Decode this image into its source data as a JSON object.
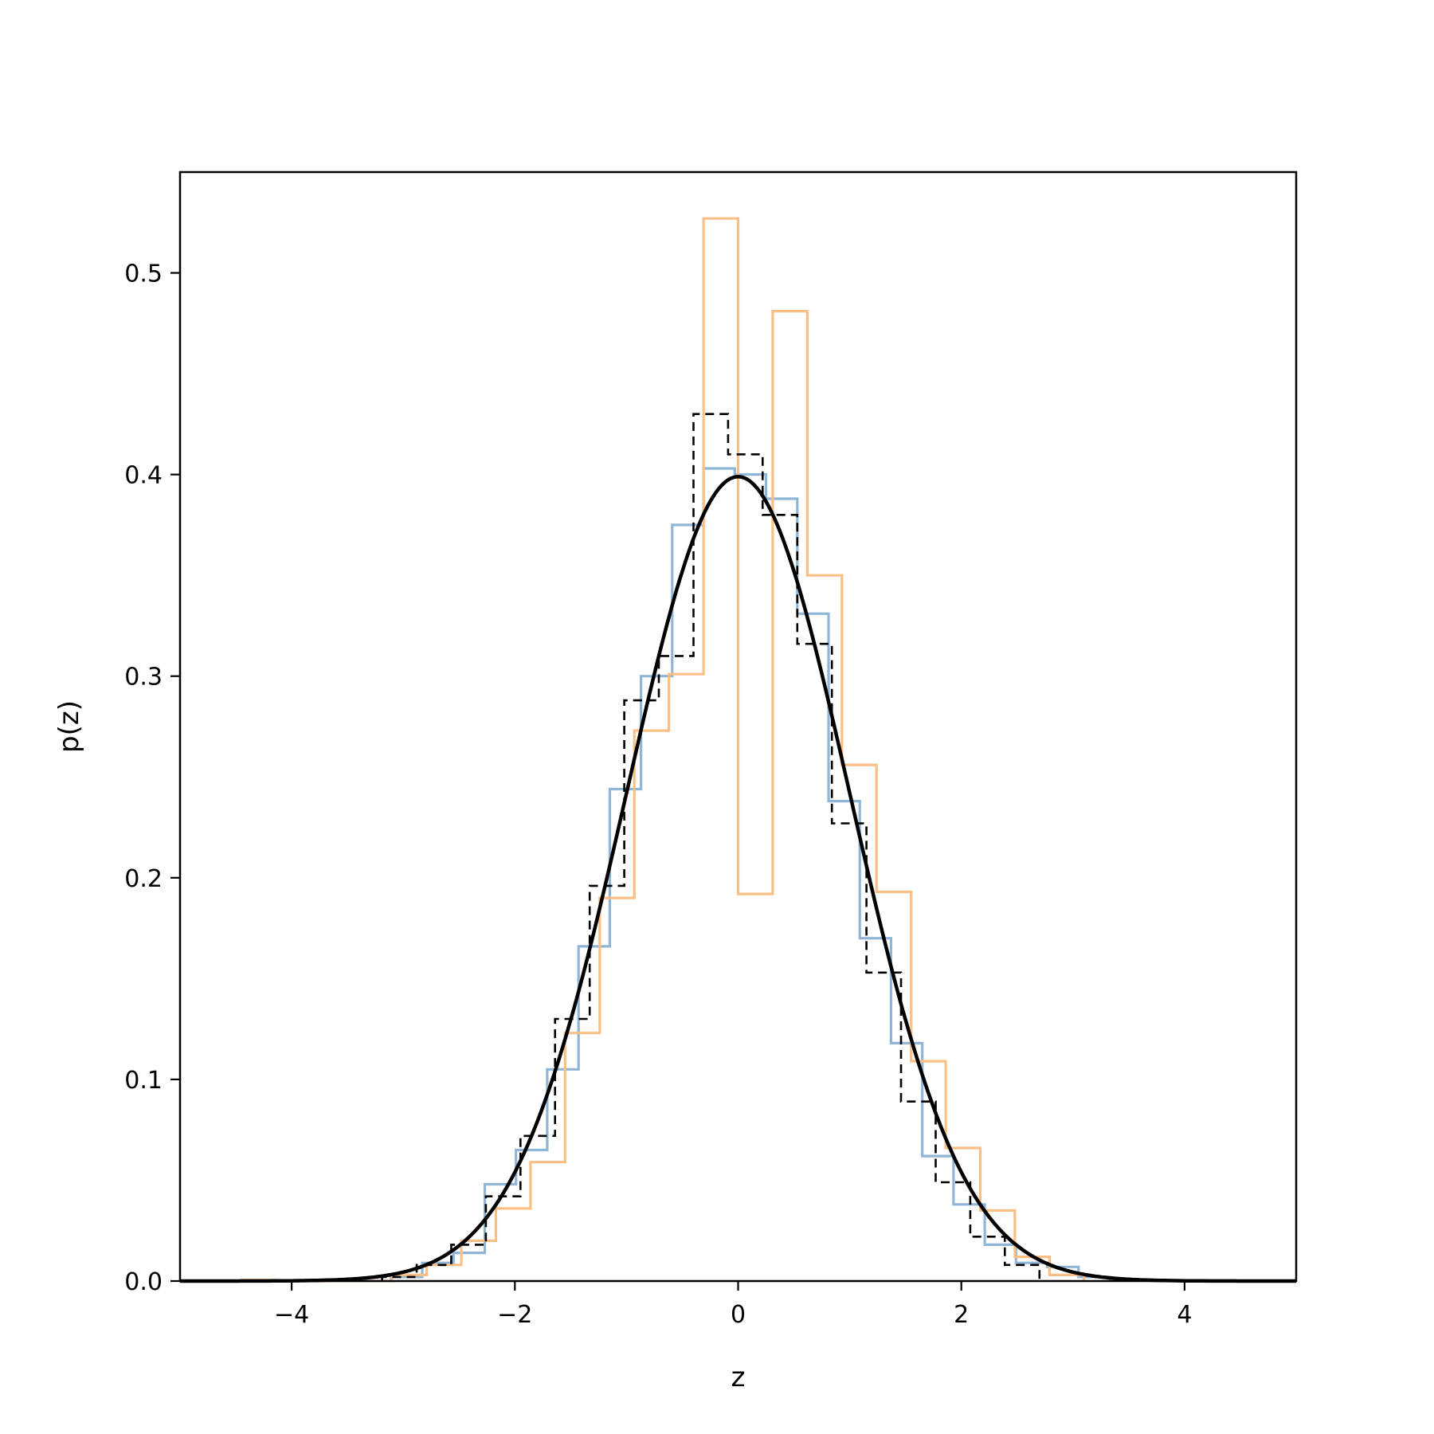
{
  "chart_data": {
    "type": "histogram-line",
    "title": "",
    "xlabel": "z",
    "ylabel": "p(z)",
    "xlim": [
      -5,
      5
    ],
    "ylim": [
      0,
      0.55
    ],
    "xticks": [
      -4,
      -2,
      0,
      2,
      4
    ],
    "xtick_labels": [
      "−4",
      "−2",
      "0",
      "2",
      "4"
    ],
    "yticks": [
      0.0,
      0.1,
      0.2,
      0.3,
      0.4,
      0.5
    ],
    "ytick_labels": [
      "0.0",
      "0.1",
      "0.2",
      "0.3",
      "0.4",
      "0.5"
    ],
    "grid": false,
    "colors": {
      "blue": "#8fb6d6",
      "orange": "#fbbf86",
      "black": "#000000"
    },
    "series": [
      {
        "style": "step-blue",
        "edges": [
          -3.11,
          -2.83,
          -2.55,
          -2.27,
          -1.99,
          -1.71,
          -1.43,
          -1.15,
          -0.87,
          -0.59,
          -0.31,
          -0.03,
          0.25,
          0.53,
          0.81,
          1.09,
          1.37,
          1.65,
          1.93,
          2.21,
          2.49,
          2.77,
          3.05,
          3.33
        ],
        "values": [
          0.002,
          0.009,
          0.014,
          0.048,
          0.065,
          0.105,
          0.166,
          0.244,
          0.3,
          0.375,
          0.403,
          0.4,
          0.388,
          0.331,
          0.238,
          0.17,
          0.118,
          0.062,
          0.038,
          0.018,
          0.009,
          0.007,
          0.002
        ]
      },
      {
        "style": "step-orange",
        "edges": [
          -4.45,
          -4.15,
          -3.1,
          -2.79,
          -2.48,
          -2.17,
          -1.86,
          -1.55,
          -1.24,
          -0.93,
          -0.62,
          -0.31,
          0.0,
          0.31,
          0.62,
          0.93,
          1.24,
          1.55,
          1.86,
          2.17,
          2.48,
          2.79,
          3.1
        ],
        "values": [
          0.0005,
          0.0,
          0.003,
          0.008,
          0.02,
          0.036,
          0.059,
          0.123,
          0.19,
          0.273,
          0.301,
          0.527,
          0.192,
          0.481,
          0.35,
          0.256,
          0.193,
          0.109,
          0.066,
          0.035,
          0.012,
          0.003
        ]
      },
      {
        "style": "step-dashed",
        "edges": [
          -3.19,
          -2.88,
          -2.57,
          -2.26,
          -1.95,
          -1.64,
          -1.33,
          -1.02,
          -0.71,
          -0.4,
          -0.09,
          0.22,
          0.53,
          0.84,
          1.15,
          1.46,
          1.77,
          2.08,
          2.39,
          2.7
        ],
        "values": [
          0.002,
          0.008,
          0.018,
          0.042,
          0.072,
          0.13,
          0.196,
          0.288,
          0.31,
          0.43,
          0.41,
          0.38,
          0.316,
          0.227,
          0.153,
          0.089,
          0.049,
          0.022,
          0.008
        ]
      },
      {
        "style": "gaussian-pdf",
        "mean": 0,
        "std": 1,
        "x_range": [
          -5,
          5
        ]
      }
    ]
  }
}
